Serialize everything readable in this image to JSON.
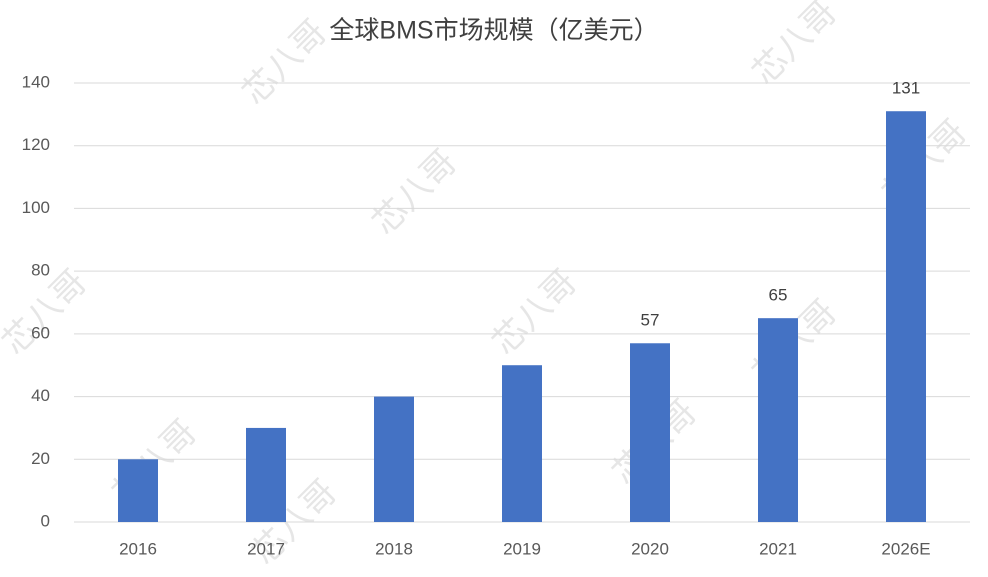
{
  "chart_data": {
    "type": "bar",
    "title": "全球BMS市场规模（亿美元）",
    "categories": [
      "2016",
      "2017",
      "2018",
      "2019",
      "2020",
      "2021",
      "2026E"
    ],
    "values": [
      20,
      30,
      40,
      50,
      57,
      65,
      131
    ],
    "value_labels": [
      null,
      null,
      null,
      null,
      "57",
      "65",
      "131"
    ],
    "color": "#4472c4",
    "ylim": [
      0,
      140
    ],
    "yticks": [
      0,
      20,
      40,
      60,
      80,
      100,
      120,
      140
    ],
    "grid": true,
    "watermark": "芯八哥"
  }
}
